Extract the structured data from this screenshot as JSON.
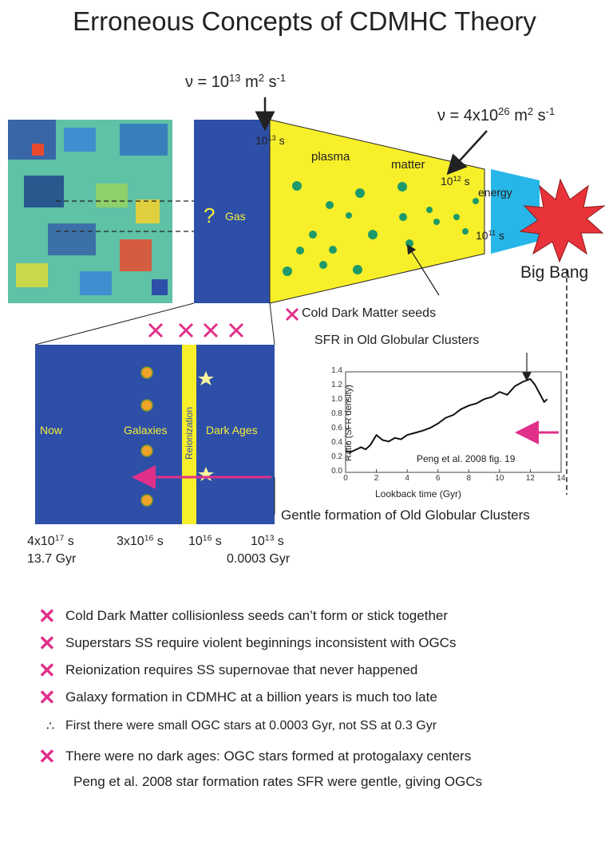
{
  "title": "Erroneous Concepts of CDMHC Theory",
  "viscosity_left": {
    "prefix": "ν = 10",
    "exp": "13",
    "unit": " m",
    "unit_exp": "2",
    "tail": " s",
    "tail_exp": "-1"
  },
  "viscosity_right": {
    "prefix": "ν = 4x10",
    "exp": "26",
    "unit": " m",
    "unit_exp": "2",
    "tail": " s",
    "tail_exp": "-1"
  },
  "top_diagram": {
    "time_13": {
      "base": "10",
      "exp": "13",
      "unit": " s"
    },
    "time_12": {
      "base": "10",
      "exp": "12",
      "unit": " s"
    },
    "time_11": {
      "base": "10",
      "exp": "11",
      "unit": " s"
    },
    "plasma": "plasma",
    "matter": "matter",
    "energy": "energy",
    "gas": "Gas",
    "question": "?",
    "big_bang": "Big Bang",
    "cdm_seeds": "Cold Dark Matter seeds"
  },
  "timeline_box": {
    "now": "Now",
    "galaxies": "Galaxies",
    "reionization": "Reionization",
    "dark_ages": "Dark Ages"
  },
  "timeline_axis": {
    "t1": {
      "base": "4x10",
      "exp": "17",
      "unit": " s"
    },
    "t1_gyr": "13.7 Gyr",
    "t2": {
      "base": "3x10",
      "exp": "16",
      "unit": " s"
    },
    "t3": {
      "base": "10",
      "exp": "16",
      "unit": " s"
    },
    "t4": {
      "base": "10",
      "exp": "13",
      "unit": " s"
    },
    "t4_gyr": "0.0003 Gyr"
  },
  "sfr_label": "SFR in Old Globular Clusters",
  "gentle_label": "Gentle formation of Old Globular Clusters",
  "chart_data": {
    "type": "line",
    "title": "",
    "xlabel": "Lookback time (Gyr)",
    "ylabel": "Ratio (SFR density)",
    "xlim": [
      0,
      14
    ],
    "ylim": [
      0,
      1.4
    ],
    "xticks": [
      0,
      2,
      4,
      6,
      8,
      10,
      12,
      14
    ],
    "yticks": [
      0,
      0.2,
      0.4,
      0.6,
      0.8,
      1.0,
      1.2,
      1.4
    ],
    "annotation": "Peng et al. 2008 fig. 19",
    "grid": false,
    "series": [
      {
        "x": [
          0,
          0.3,
          0.6,
          1.0,
          1.3,
          1.6,
          2.0,
          2.4,
          2.8,
          3.2,
          3.6,
          4.0,
          4.5,
          5.0,
          5.5,
          6.0,
          6.5,
          7.0,
          7.5,
          8.0,
          8.5,
          9.0,
          9.5,
          10.0,
          10.5,
          11.0,
          11.5,
          12.0,
          12.3,
          12.6,
          12.9,
          13.1
        ],
        "y": [
          0.3,
          0.28,
          0.31,
          0.35,
          0.32,
          0.38,
          0.52,
          0.45,
          0.43,
          0.48,
          0.46,
          0.52,
          0.55,
          0.58,
          0.62,
          0.68,
          0.76,
          0.8,
          0.88,
          0.93,
          0.96,
          1.02,
          1.05,
          1.12,
          1.08,
          1.2,
          1.26,
          1.3,
          1.22,
          1.1,
          0.98,
          1.02
        ]
      }
    ]
  },
  "bullets": [
    {
      "mark": "✕",
      "text": "Cold Dark Matter collisionless seeds can’t form or stick together"
    },
    {
      "mark": "✕",
      "text": "Superstars SS require violent beginnings inconsistent with OGCs"
    },
    {
      "mark": "✕",
      "text": "Reionization requires SS supernovae that never happened"
    },
    {
      "mark": "✕",
      "text": "Galaxy formation in CDMHC at a billion years is much too late"
    },
    {
      "mark": "∴",
      "text": "First there were small OGC stars at 0.0003 Gyr, not SS at 0.3 Gyr"
    },
    {
      "mark": "✕",
      "text": "There were no dark ages: OGC stars formed at protogalaxy centers"
    },
    {
      "mark": "",
      "text": "Peng et al. 2008 star formation rates SFR were gentle, giving OGCs"
    }
  ],
  "colors": {
    "box_blue": "#2e4fa8",
    "plasma_yellow": "#f7ef2a",
    "energy_cyan": "#27b6e8",
    "bang_red": "#e8333a",
    "cross_pink": "#e0308a",
    "seed_green": "#1e9a6a",
    "galaxy_orange": "#f0a22a"
  }
}
